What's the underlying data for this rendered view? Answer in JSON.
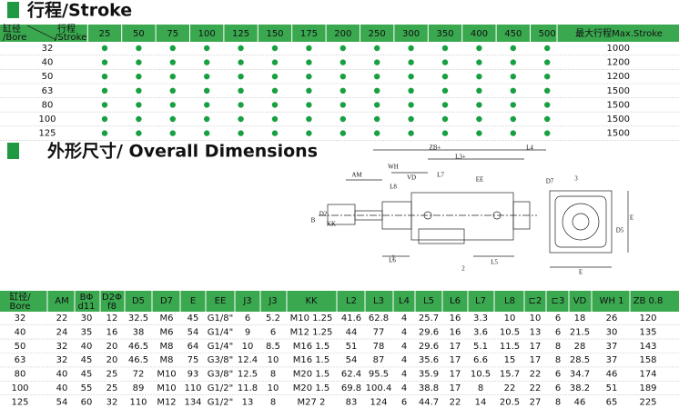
{
  "stroke_section": {
    "title": "行程/Stroke",
    "table": {
      "corner": {
        "bore": [
          "缸径",
          "/Bore"
        ],
        "stroke": [
          "行程",
          "/Stroke"
        ]
      },
      "strokes": [
        "25",
        "50",
        "75",
        "100",
        "125",
        "150",
        "175",
        "200",
        "250",
        "300",
        "350",
        "400",
        "450",
        "500"
      ],
      "max_header": "最大行程Max.Stroke",
      "rows": [
        [
          "32",
          "1000"
        ],
        [
          "40",
          "1200"
        ],
        [
          "50",
          "1200"
        ],
        [
          "63",
          "1500"
        ],
        [
          "80",
          "1500"
        ],
        [
          "100",
          "1500"
        ],
        [
          "125",
          "1500"
        ]
      ]
    }
  },
  "dimension_section": {
    "title": "外形尺寸/ Overall Dimensions",
    "drawing_labels": [
      "ZB+",
      "L4",
      "L3+",
      "WH",
      "AM",
      "L7",
      "VD",
      "EE",
      "L8",
      "KK",
      "B",
      "D2",
      "L6",
      "L5",
      "1",
      "2",
      "3",
      "D7",
      "D5",
      "E",
      "E"
    ],
    "table": {
      "header": [
        [
          "缸径/",
          "Bore"
        ],
        "AM",
        [
          "BΦ",
          "d11"
        ],
        [
          "D2Φ",
          "f8"
        ],
        "D5",
        "D7",
        "E",
        "EE",
        "J3",
        "J3",
        "KK",
        "L2",
        "L3",
        "L4",
        "L5",
        "L6",
        "L7",
        "L8",
        "⊏2",
        "⊏3",
        "VD",
        "WH 1",
        "ZB 0.8"
      ],
      "rows": [
        [
          "32",
          "22",
          "30",
          "12",
          "32.5",
          "M6",
          "45",
          "G1/8\"",
          "6",
          "5.2",
          "M10 1.25",
          "41.6",
          "62.8",
          "4",
          "25.7",
          "16",
          "3.3",
          "10",
          "10",
          "6",
          "18",
          "26",
          "120"
        ],
        [
          "40",
          "24",
          "35",
          "16",
          "38",
          "M6",
          "54",
          "G1/4\"",
          "9",
          "6",
          "M12 1.25",
          "44",
          "77",
          "4",
          "29.6",
          "16",
          "3.6",
          "10.5",
          "13",
          "6",
          "21.5",
          "30",
          "135"
        ],
        [
          "50",
          "32",
          "40",
          "20",
          "46.5",
          "M8",
          "64",
          "G1/4\"",
          "10",
          "8.5",
          "M16 1.5",
          "51",
          "78",
          "4",
          "29.6",
          "17",
          "5.1",
          "11.5",
          "17",
          "8",
          "28",
          "37",
          "143"
        ],
        [
          "63",
          "32",
          "45",
          "20",
          "46.5",
          "M8",
          "75",
          "G3/8\"",
          "12.4",
          "10",
          "M16 1.5",
          "54",
          "87",
          "4",
          "35.6",
          "17",
          "6.6",
          "15",
          "17",
          "8",
          "28.5",
          "37",
          "158"
        ],
        [
          "80",
          "40",
          "45",
          "25",
          "72",
          "M10",
          "93",
          "G3/8\"",
          "12.5",
          "8",
          "M20 1.5",
          "62.4",
          "95.5",
          "4",
          "35.9",
          "17",
          "10.5",
          "15.7",
          "22",
          "6",
          "34.7",
          "46",
          "174"
        ],
        [
          "100",
          "40",
          "55",
          "25",
          "89",
          "M10",
          "110",
          "G1/2\"",
          "11.8",
          "10",
          "M20 1.5",
          "69.8",
          "100.4",
          "4",
          "38.8",
          "17",
          "8",
          "22",
          "22",
          "6",
          "38.2",
          "51",
          "189"
        ],
        [
          "125",
          "54",
          "60",
          "32",
          "110",
          "M12",
          "134",
          "G1/2\"",
          "13",
          "8",
          "M27 2",
          "83",
          "124",
          "6",
          "44.7",
          "22",
          "14",
          "20.5",
          "27",
          "8",
          "46",
          "65",
          "225"
        ]
      ]
    }
  }
}
